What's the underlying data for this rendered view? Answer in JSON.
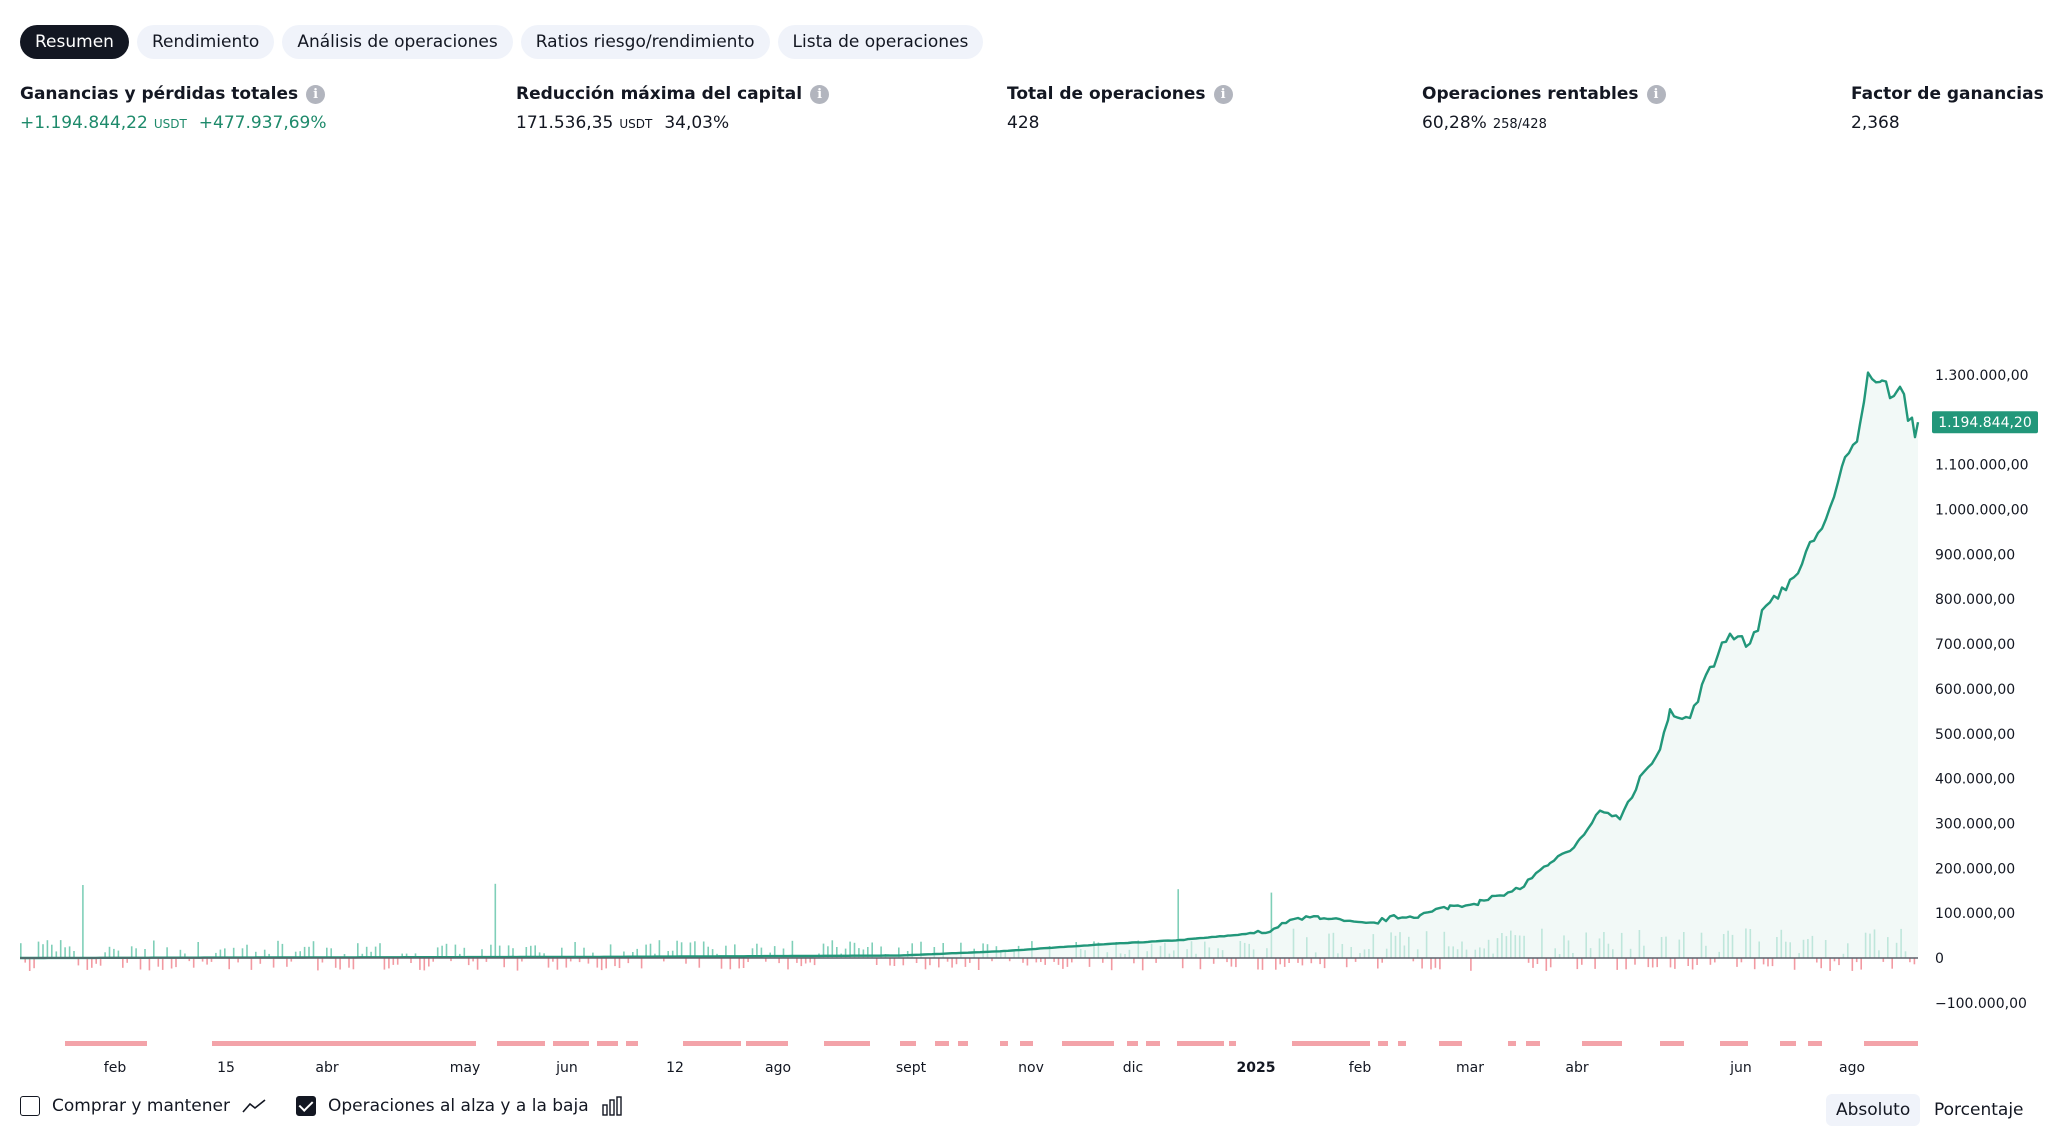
{
  "tabs": [
    {
      "label": "Resumen",
      "active": true
    },
    {
      "label": "Rendimiento",
      "active": false
    },
    {
      "label": "Análisis de operaciones",
      "active": false
    },
    {
      "label": "Ratios riesgo/rendimiento",
      "active": false
    },
    {
      "label": "Lista de operaciones",
      "active": false
    }
  ],
  "metrics": {
    "net_profit": {
      "label": "Ganancias y pérdidas totales",
      "value": "+1.194.844,22",
      "unit": "USDT",
      "percent": "+477.937,69%"
    },
    "max_drawdown": {
      "label": "Reducción máxima del capital",
      "value": "171.536,35",
      "unit": "USDT",
      "percent": "34,03%"
    },
    "total_trades": {
      "label": "Total de operaciones",
      "value": "428"
    },
    "profitable": {
      "label": "Operaciones rentables",
      "value": "60,28%",
      "detail": "258/428"
    },
    "profit_factor": {
      "label": "Factor de ganancias",
      "value": "2,368"
    }
  },
  "info_icon_glyph": "i",
  "colors": {
    "accent": "#22977a",
    "fill": "#e9f5f2",
    "pos_bar": "#7fcfb8",
    "neg_bar": "#f29aa2",
    "drawdown": "#f3a3a9"
  },
  "chart_data": {
    "type": "area",
    "title": "",
    "series": [
      {
        "name": "Ganancias y pérdidas totales",
        "start": 0,
        "end": 1194844.2,
        "peak": 1320000
      }
    ],
    "y_ticks": [
      "1.300.000,00",
      "1.100.000,00",
      "1.000.000,00",
      "900.000,00",
      "800.000,00",
      "700.000,00",
      "600.000,00",
      "500.000,00",
      "400.000,00",
      "300.000,00",
      "200.000,00",
      "100.000,00",
      "0",
      "−100.000,00"
    ],
    "y_tick_values": [
      1300000,
      1100000,
      1000000,
      900000,
      800000,
      700000,
      600000,
      500000,
      400000,
      300000,
      200000,
      100000,
      0,
      -100000
    ],
    "ylim": [
      -100000,
      1300000
    ],
    "last_value_label": "1.194.844,20",
    "x_ticks": [
      {
        "label": "feb",
        "bold": false
      },
      {
        "label": "15",
        "bold": false
      },
      {
        "label": "abr",
        "bold": false
      },
      {
        "label": "may",
        "bold": false
      },
      {
        "label": "jun",
        "bold": false
      },
      {
        "label": "12",
        "bold": false
      },
      {
        "label": "ago",
        "bold": false
      },
      {
        "label": "sept",
        "bold": false
      },
      {
        "label": "nov",
        "bold": false
      },
      {
        "label": "dic",
        "bold": false
      },
      {
        "label": "2025",
        "bold": true
      },
      {
        "label": "feb",
        "bold": false
      },
      {
        "label": "mar",
        "bold": false
      },
      {
        "label": "abr",
        "bold": false
      },
      {
        "label": "jun",
        "bold": false
      },
      {
        "label": "ago",
        "bold": false
      }
    ]
  },
  "footer": {
    "buy_hold_label": "Comprar y mantener",
    "buy_hold_checked": false,
    "long_short_label": "Operaciones al alza y a la baja",
    "long_short_checked": true,
    "absolute_label": "Absoluto",
    "percent_label": "Porcentaje"
  }
}
